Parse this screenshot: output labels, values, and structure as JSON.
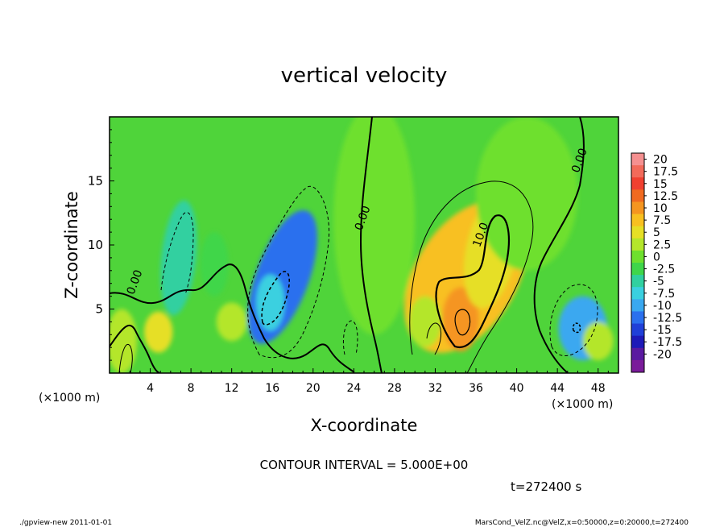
{
  "chart_data": {
    "type": "heatmap",
    "title": "vertical velocity",
    "xlabel": "X-coordinate",
    "ylabel": "Z-coordinate",
    "x_unit_left": "(×1000 m)",
    "x_unit_right": "(×1000 m)",
    "xlim": [
      0,
      50
    ],
    "ylim": [
      0,
      20
    ],
    "x_ticks": [
      4,
      8,
      12,
      16,
      20,
      24,
      28,
      32,
      36,
      40,
      44,
      48
    ],
    "y_ticks": [
      5,
      10,
      15
    ],
    "contour_interval_text": "CONTOUR INTERVAL = 5.000E+00",
    "time_text": "t=272400 s",
    "footer_left": "./gpview-new  2011-01-01",
    "footer_right": "MarsCond_VelZ.nc@VelZ,x=0:50000,z=0:20000,t=272400",
    "contour_labels": [
      {
        "text": "0.00",
        "x": 2.8,
        "y": 7.0
      },
      {
        "text": "0.00",
        "x": 25.2,
        "y": 12.0
      },
      {
        "text": "10.0",
        "x": 36.8,
        "y": 10.7
      },
      {
        "text": "0.00",
        "x": 46.5,
        "y": 16.5
      }
    ],
    "colorbar": {
      "labels": [
        "20",
        "17.5",
        "15",
        "12.5",
        "10",
        "7.5",
        "5",
        "2.5",
        "0",
        "-2.5",
        "-5",
        "-7.5",
        "-10",
        "-12.5",
        "-15",
        "-17.5",
        "-20"
      ],
      "colors": [
        "#f59090",
        "#f26a5a",
        "#f04030",
        "#f06a20",
        "#f59520",
        "#f8c020",
        "#e6df25",
        "#b4e62b",
        "#6ee02e",
        "#3fd64a",
        "#30d0a0",
        "#3ad0e0",
        "#3aa8f0",
        "#2b70ee",
        "#2040d8",
        "#1e1ab8",
        "#5a1aa0",
        "#7a1c9a"
      ],
      "background": "#4fd43a",
      "features": [
        {
          "x": 35,
          "z": 7.5,
          "rx": 5.0,
          "rz": 6.5,
          "value": 8,
          "rot": 0.55
        },
        {
          "x": 34.5,
          "z": 4.2,
          "rx": 1.8,
          "rz": 2.5,
          "value": 10
        },
        {
          "x": 37.5,
          "z": 9.5,
          "rx": 2.5,
          "rz": 4.5,
          "value": 5,
          "rot": 0.2
        },
        {
          "x": 31.0,
          "z": 4.0,
          "rx": 1.6,
          "rz": 2.0,
          "value": 4
        },
        {
          "x": 17,
          "z": 7.5,
          "rx": 2.6,
          "rz": 5.5,
          "value": -11,
          "rot": 0.35
        },
        {
          "x": 15.8,
          "z": 5.5,
          "rx": 1.4,
          "rz": 2.2,
          "value": -6
        },
        {
          "x": 6.8,
          "z": 9.0,
          "rx": 1.7,
          "rz": 4.5,
          "value": -5,
          "rot": 0.1
        },
        {
          "x": 10.3,
          "z": 8.5,
          "rx": 1.4,
          "rz": 2.5,
          "value": -2.5
        },
        {
          "x": 46.5,
          "z": 3.5,
          "rx": 2.4,
          "rz": 2.5,
          "value": -8
        },
        {
          "x": 48,
          "z": 2.5,
          "rx": 1.5,
          "rz": 1.5,
          "value": 4
        },
        {
          "x": 4.8,
          "z": 3.2,
          "rx": 1.4,
          "rz": 1.6,
          "value": 6
        },
        {
          "x": 1.2,
          "z": 2.5,
          "rx": 1.5,
          "rz": 2.5,
          "value": 3
        },
        {
          "x": 12,
          "z": 4,
          "rx": 1.5,
          "rz": 1.5,
          "value": 3
        },
        {
          "x": 26,
          "z": 12,
          "rx": 4.0,
          "rz": 9.0,
          "value": 1.5
        },
        {
          "x": 41,
          "z": 14,
          "rx": 5.0,
          "rz": 6.0,
          "value": 1.0
        }
      ]
    }
  }
}
